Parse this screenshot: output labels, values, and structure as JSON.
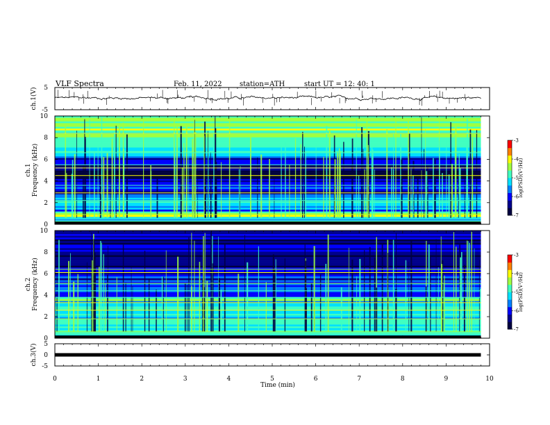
{
  "header": {
    "title": "VLF  Spectra",
    "date": "Feb. 11, 2022",
    "station": "station=ATH",
    "start": "start  UT  =    12: 40: 1"
  },
  "colors": {
    "spectrogram_map": [
      "#000040",
      "#00008c",
      "#0000ff",
      "#0080ff",
      "#00e0ff",
      "#40ffc0",
      "#a0ff40",
      "#ffff00",
      "#ff8000",
      "#ff0000",
      "#ffffff"
    ],
    "trace": "#000000"
  },
  "chart_data": [
    {
      "type": "line",
      "name": "ch1-waveform",
      "ylabel": "ch.1(V)",
      "ylim": [
        -5,
        5
      ],
      "y_ticks": [
        "5",
        "-5"
      ],
      "x_range_min": [
        0,
        9.8
      ],
      "mean_level": 0.3,
      "amplitude": 0.6,
      "spike_count": 60
    },
    {
      "type": "heatmap",
      "name": "ch1-spectrogram",
      "ylabel_top": "ch.1",
      "ylabel": "Frequency  (kHz)",
      "ylim": [
        0,
        10
      ],
      "y_ticks": [
        "0",
        "2",
        "4",
        "6",
        "8",
        "10"
      ],
      "x_range_min": [
        0,
        9.8
      ],
      "colorbar": {
        "label": "log(PSD)(V²/Hz)",
        "range": [
          -7,
          -3
        ],
        "ticks": [
          "-3",
          "-4",
          "-5",
          "-6",
          "-7"
        ]
      },
      "bands_khz": [
        {
          "from": 0,
          "to": 0.7,
          "level": -5.2
        },
        {
          "from": 0.7,
          "to": 1.2,
          "level": -4.5
        },
        {
          "from": 1.2,
          "to": 2.0,
          "level": -5.6
        },
        {
          "from": 2.0,
          "to": 2.6,
          "level": -5.0
        },
        {
          "from": 2.6,
          "to": 3.6,
          "level": -5.8
        },
        {
          "from": 3.6,
          "to": 4.2,
          "level": -6.2
        },
        {
          "from": 4.2,
          "to": 4.8,
          "level": -6.9
        },
        {
          "from": 4.8,
          "to": 5.6,
          "level": -6.3
        },
        {
          "from": 5.6,
          "to": 6.3,
          "level": -5.9
        },
        {
          "from": 6.3,
          "to": 8.5,
          "level": -4.9
        },
        {
          "from": 8.5,
          "to": 10,
          "level": -4.4
        }
      ],
      "tone_lines_khz": [
        0.5,
        0.9,
        2.2,
        2.9,
        3.6,
        4.5,
        5.2,
        5.5,
        6.6,
        8.4
      ],
      "sferic_columns": 140
    },
    {
      "type": "heatmap",
      "name": "ch2-spectrogram",
      "ylabel_top": "ch.2",
      "ylabel": "Frequency  (kHz)",
      "ylim": [
        0,
        10
      ],
      "y_ticks": [
        "0",
        "2",
        "4",
        "6",
        "8",
        "10"
      ],
      "x_range_min": [
        0,
        9.8
      ],
      "colorbar": {
        "label": "log(PSD)(V²/Hz)",
        "range": [
          -7,
          -3
        ],
        "ticks": [
          "-3",
          "-4",
          "-5",
          "-6",
          "-7"
        ]
      },
      "bands_khz": [
        {
          "from": 0,
          "to": 0.6,
          "level": -4.6
        },
        {
          "from": 0.6,
          "to": 1.6,
          "level": -4.9
        },
        {
          "from": 1.6,
          "to": 2.6,
          "level": -5.2
        },
        {
          "from": 2.6,
          "to": 3.8,
          "level": -5.0
        },
        {
          "from": 3.8,
          "to": 4.6,
          "level": -6.0
        },
        {
          "from": 4.6,
          "to": 5.4,
          "level": -5.8
        },
        {
          "from": 5.4,
          "to": 6.4,
          "level": -6.1
        },
        {
          "from": 6.4,
          "to": 10,
          "level": -6.3
        }
      ],
      "tone_lines_khz": [
        0.6,
        1.8,
        2.6,
        3.3,
        3.8,
        4.4,
        5.1,
        6.1,
        6.4
      ],
      "sferic_columns": 120
    },
    {
      "type": "line",
      "name": "ch3-waveform",
      "ylabel": "ch.3(V)",
      "ylim": [
        -5,
        5
      ],
      "y_ticks": [
        "5",
        "0",
        "-5"
      ],
      "x_range_min": [
        0,
        9.8
      ],
      "mean_level": 0,
      "amplitude": 0
    }
  ],
  "x_axis": {
    "label": "Time  (min)",
    "range": [
      0,
      10
    ],
    "ticks": [
      "0",
      "1",
      "2",
      "3",
      "4",
      "5",
      "6",
      "7",
      "8",
      "9",
      "10"
    ]
  }
}
